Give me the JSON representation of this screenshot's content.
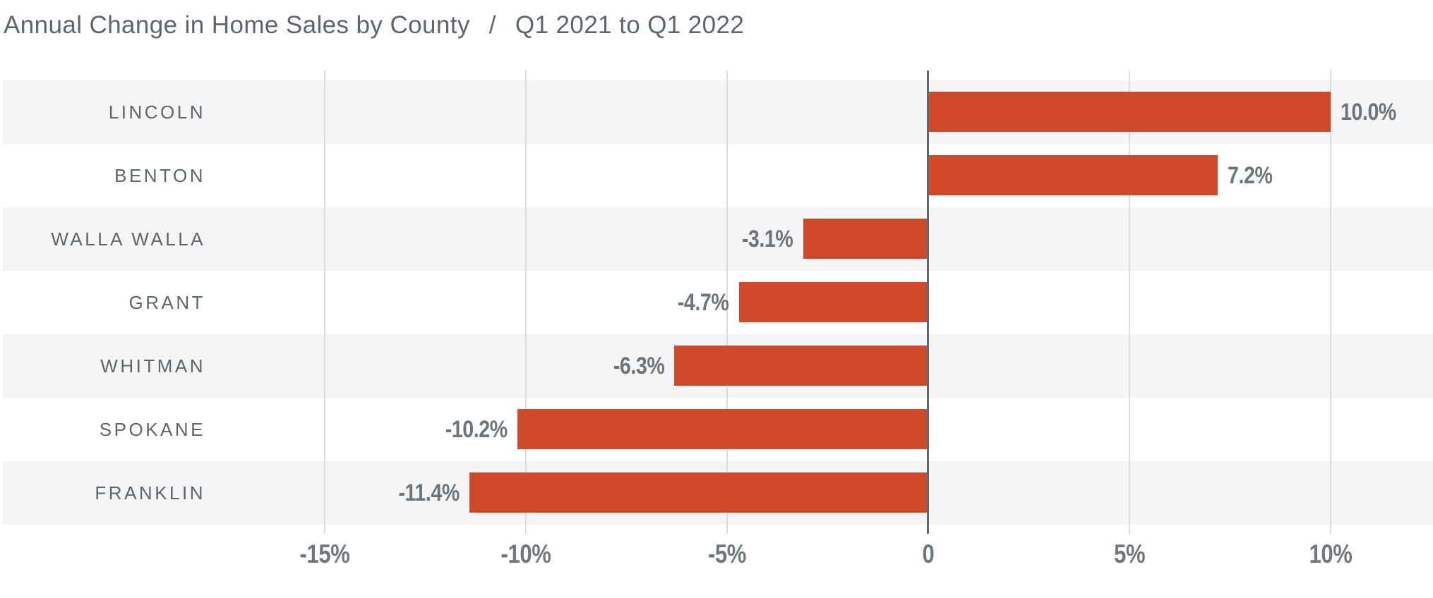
{
  "title": {
    "main": "Annual Change in Home Sales by County",
    "separator": "/",
    "period": "Q1 2021 to Q1 2022"
  },
  "chart_data": {
    "type": "bar",
    "orientation": "horizontal",
    "title": "Annual Change in Home Sales by County / Q1 2021 to Q1 2022",
    "categories": [
      "LINCOLN",
      "BENTON",
      "WALLA WALLA",
      "GRANT",
      "WHITMAN",
      "SPOKANE",
      "FRANKLIN"
    ],
    "values": [
      10.0,
      7.2,
      -3.1,
      -4.7,
      -6.3,
      -10.2,
      -11.4
    ],
    "value_labels": [
      "10.0%",
      "7.2%",
      "-3.1%",
      "-4.7%",
      "-6.3%",
      "-10.2%",
      "-11.4%"
    ],
    "x_ticks": {
      "values": [
        -15,
        -10,
        -5,
        0,
        5,
        10
      ],
      "labels": [
        "-15%",
        "-10%",
        "-5%",
        "0",
        "5%",
        "10%"
      ]
    },
    "xlabel": "",
    "ylabel": "",
    "xlim": [
      -23.1,
      12.6
    ],
    "grid": "vertical-only",
    "legend": "none",
    "row_striping": "alternate-from-first-row",
    "colors": {
      "bar": "#d04a2a",
      "stripe": "#f5f5f6",
      "gridline": "#dcdede",
      "zero_line": "#5e6870",
      "category_label": "#5c6670",
      "value_label": "#6b757d",
      "tick_label": "#6e787f",
      "title": "#5c6670",
      "background": "#ffffff"
    }
  }
}
